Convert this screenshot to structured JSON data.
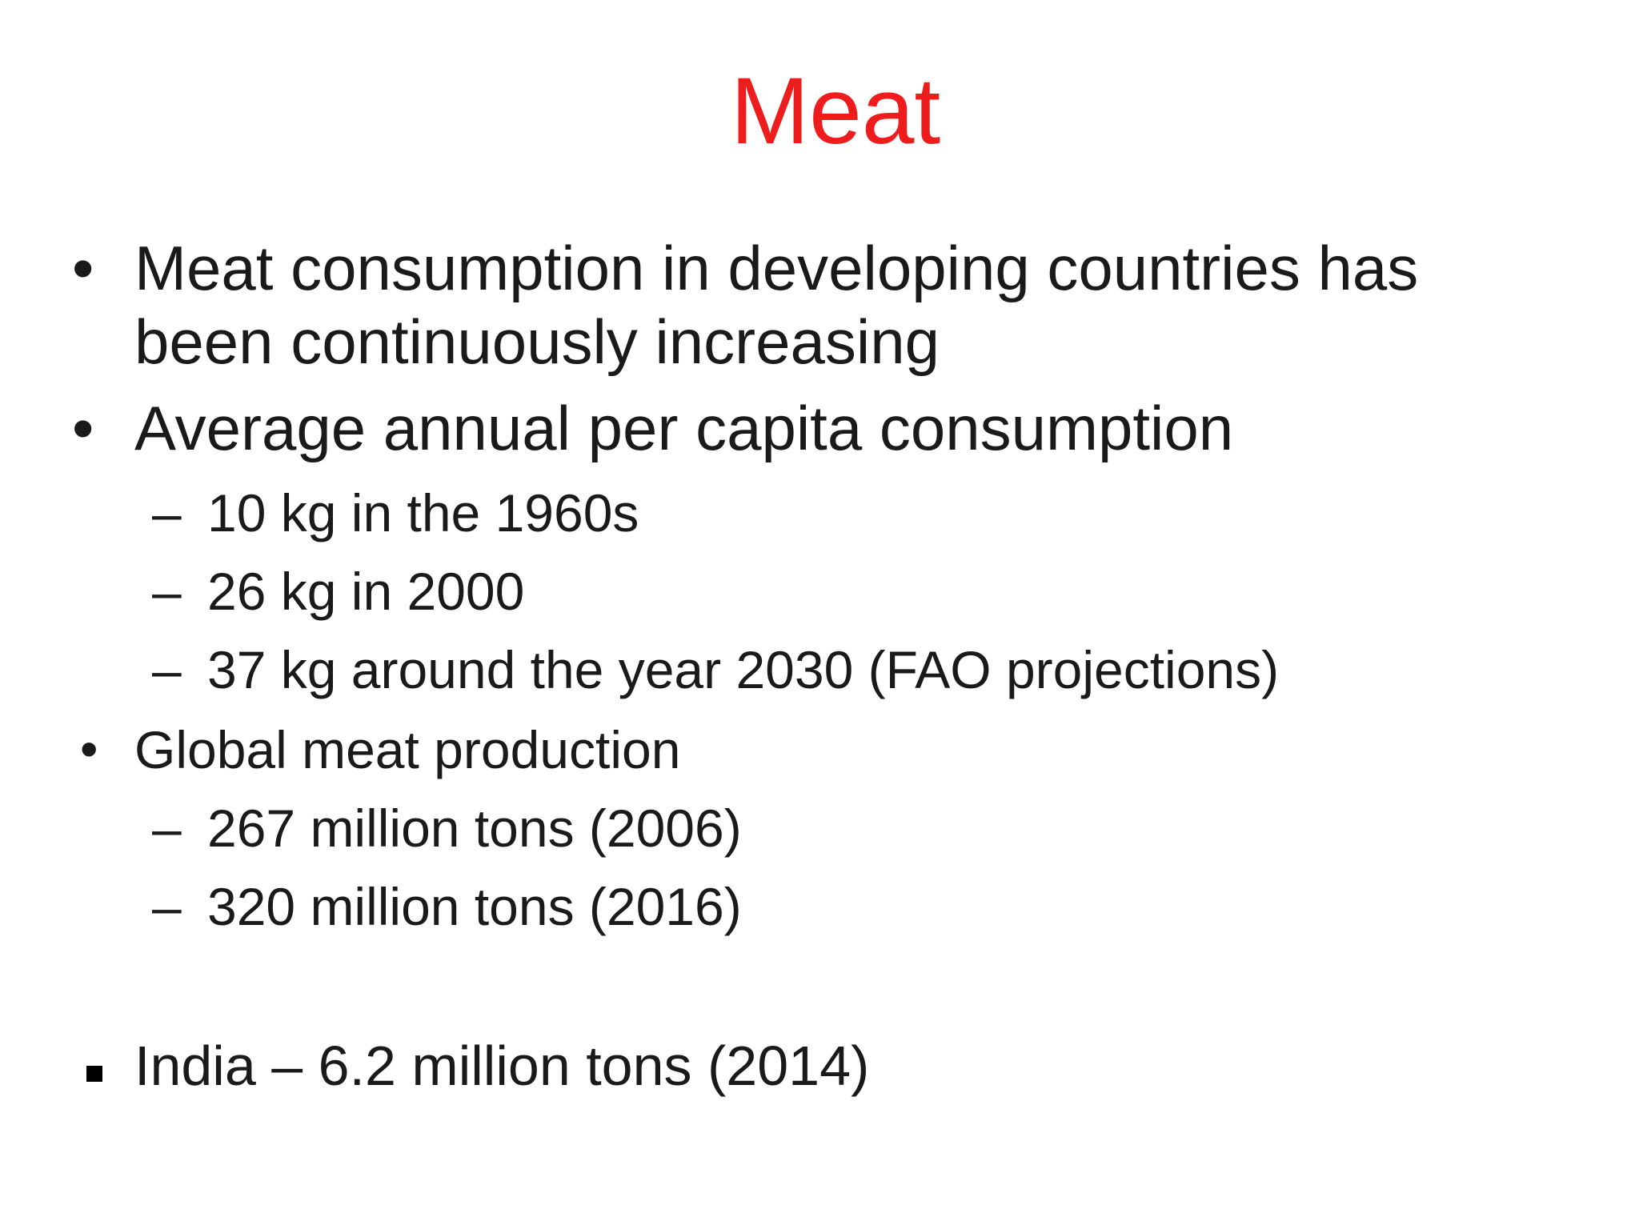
{
  "slide": {
    "title": "Meat",
    "bullets": [
      {
        "marker": "•",
        "lines": [
          "Meat consumption in developing countries has",
          "been continuously increasing"
        ]
      },
      {
        "marker": "•",
        "text": "Average annual per capita consumption"
      },
      {
        "marker": "–",
        "text": "10 kg in the 1960s"
      },
      {
        "marker": "–",
        "text": "26 kg in 2000"
      },
      {
        "marker": "–",
        "text": "37 kg around the year 2030 (FAO projections)"
      },
      {
        "marker": "•",
        "text": "Global meat production"
      },
      {
        "marker": "–",
        "text": "267 million tons (2006)"
      },
      {
        "marker": "–",
        "text": "320 million tons  (2016)"
      },
      {
        "marker": "square-bullet",
        "text": "India – 6.2 million tons (2014)"
      }
    ]
  }
}
